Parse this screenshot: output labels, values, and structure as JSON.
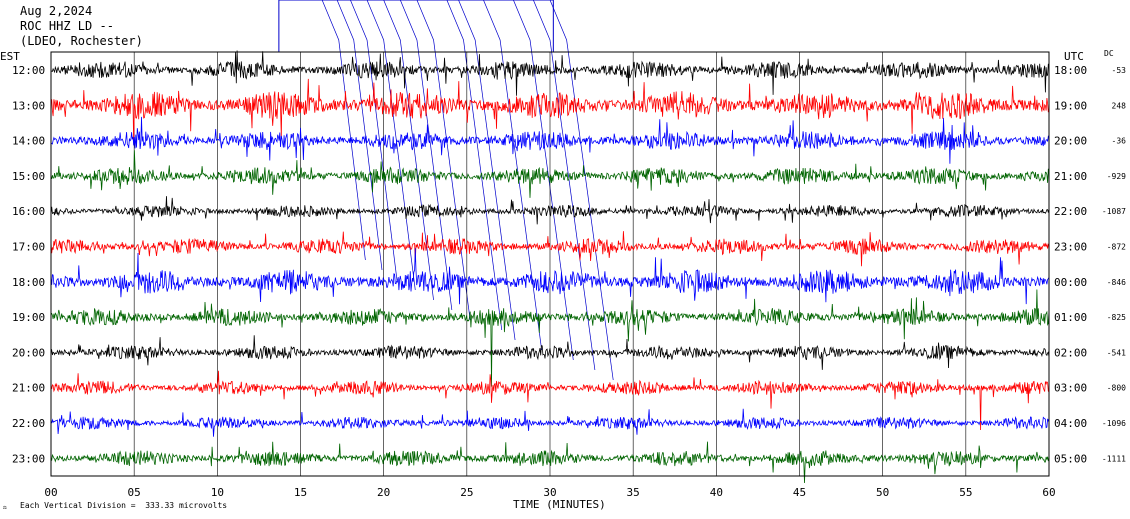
{
  "header": {
    "date": "Aug 2,2024",
    "station": "ROC HHZ LD --",
    "network": "(LDEO, Rochester)"
  },
  "footer": {
    "scale_text": "Each Vertical Division =  333.33 microvolts"
  },
  "colors": {
    "black": "#000000",
    "red": "#ff0000",
    "blue": "#0000ff",
    "green": "#006400",
    "event": "#0000cc"
  },
  "chart_data": {
    "type": "line",
    "title": "",
    "xlabel": "TIME (MINUTES)",
    "left_axis_label": "EST",
    "right_axis_label": "UTC",
    "dc_label": "DC",
    "xlim": [
      0,
      60
    ],
    "x_ticks": [
      "00",
      "05",
      "10",
      "15",
      "20",
      "25",
      "30",
      "35",
      "40",
      "45",
      "50",
      "55",
      "60"
    ],
    "rows": [
      {
        "est": "12:00",
        "utc": "18:00",
        "dc": "-53",
        "color": "#000000",
        "amplitude": 1.0
      },
      {
        "est": "13:00",
        "utc": "19:00",
        "dc": "248",
        "color": "#ff0000",
        "amplitude": 1.6
      },
      {
        "est": "14:00",
        "utc": "20:00",
        "dc": "-36",
        "color": "#0000ff",
        "amplitude": 1.1
      },
      {
        "est": "15:00",
        "utc": "21:00",
        "dc": "-929",
        "color": "#006400",
        "amplitude": 1.0
      },
      {
        "est": "16:00",
        "utc": "22:00",
        "dc": "-1087",
        "color": "#000000",
        "amplitude": 0.7
      },
      {
        "est": "17:00",
        "utc": "23:00",
        "dc": "-872",
        "color": "#ff0000",
        "amplitude": 0.9
      },
      {
        "est": "18:00",
        "utc": "00:00",
        "dc": "-846",
        "color": "#0000ff",
        "amplitude": 1.4
      },
      {
        "est": "19:00",
        "utc": "01:00",
        "dc": "-825",
        "color": "#006400",
        "amplitude": 1.0
      },
      {
        "est": "20:00",
        "utc": "02:00",
        "dc": "-541",
        "color": "#000000",
        "amplitude": 0.8
      },
      {
        "est": "21:00",
        "utc": "03:00",
        "dc": "-800",
        "color": "#ff0000",
        "amplitude": 0.8
      },
      {
        "est": "22:00",
        "utc": "04:00",
        "dc": "-1096",
        "color": "#0000ff",
        "amplitude": 0.7
      },
      {
        "est": "23:00",
        "utc": "05:00",
        "dc": "-1111",
        "color": "#006400",
        "amplitude": 0.9
      }
    ],
    "grid": "vertical",
    "legend": "none"
  }
}
